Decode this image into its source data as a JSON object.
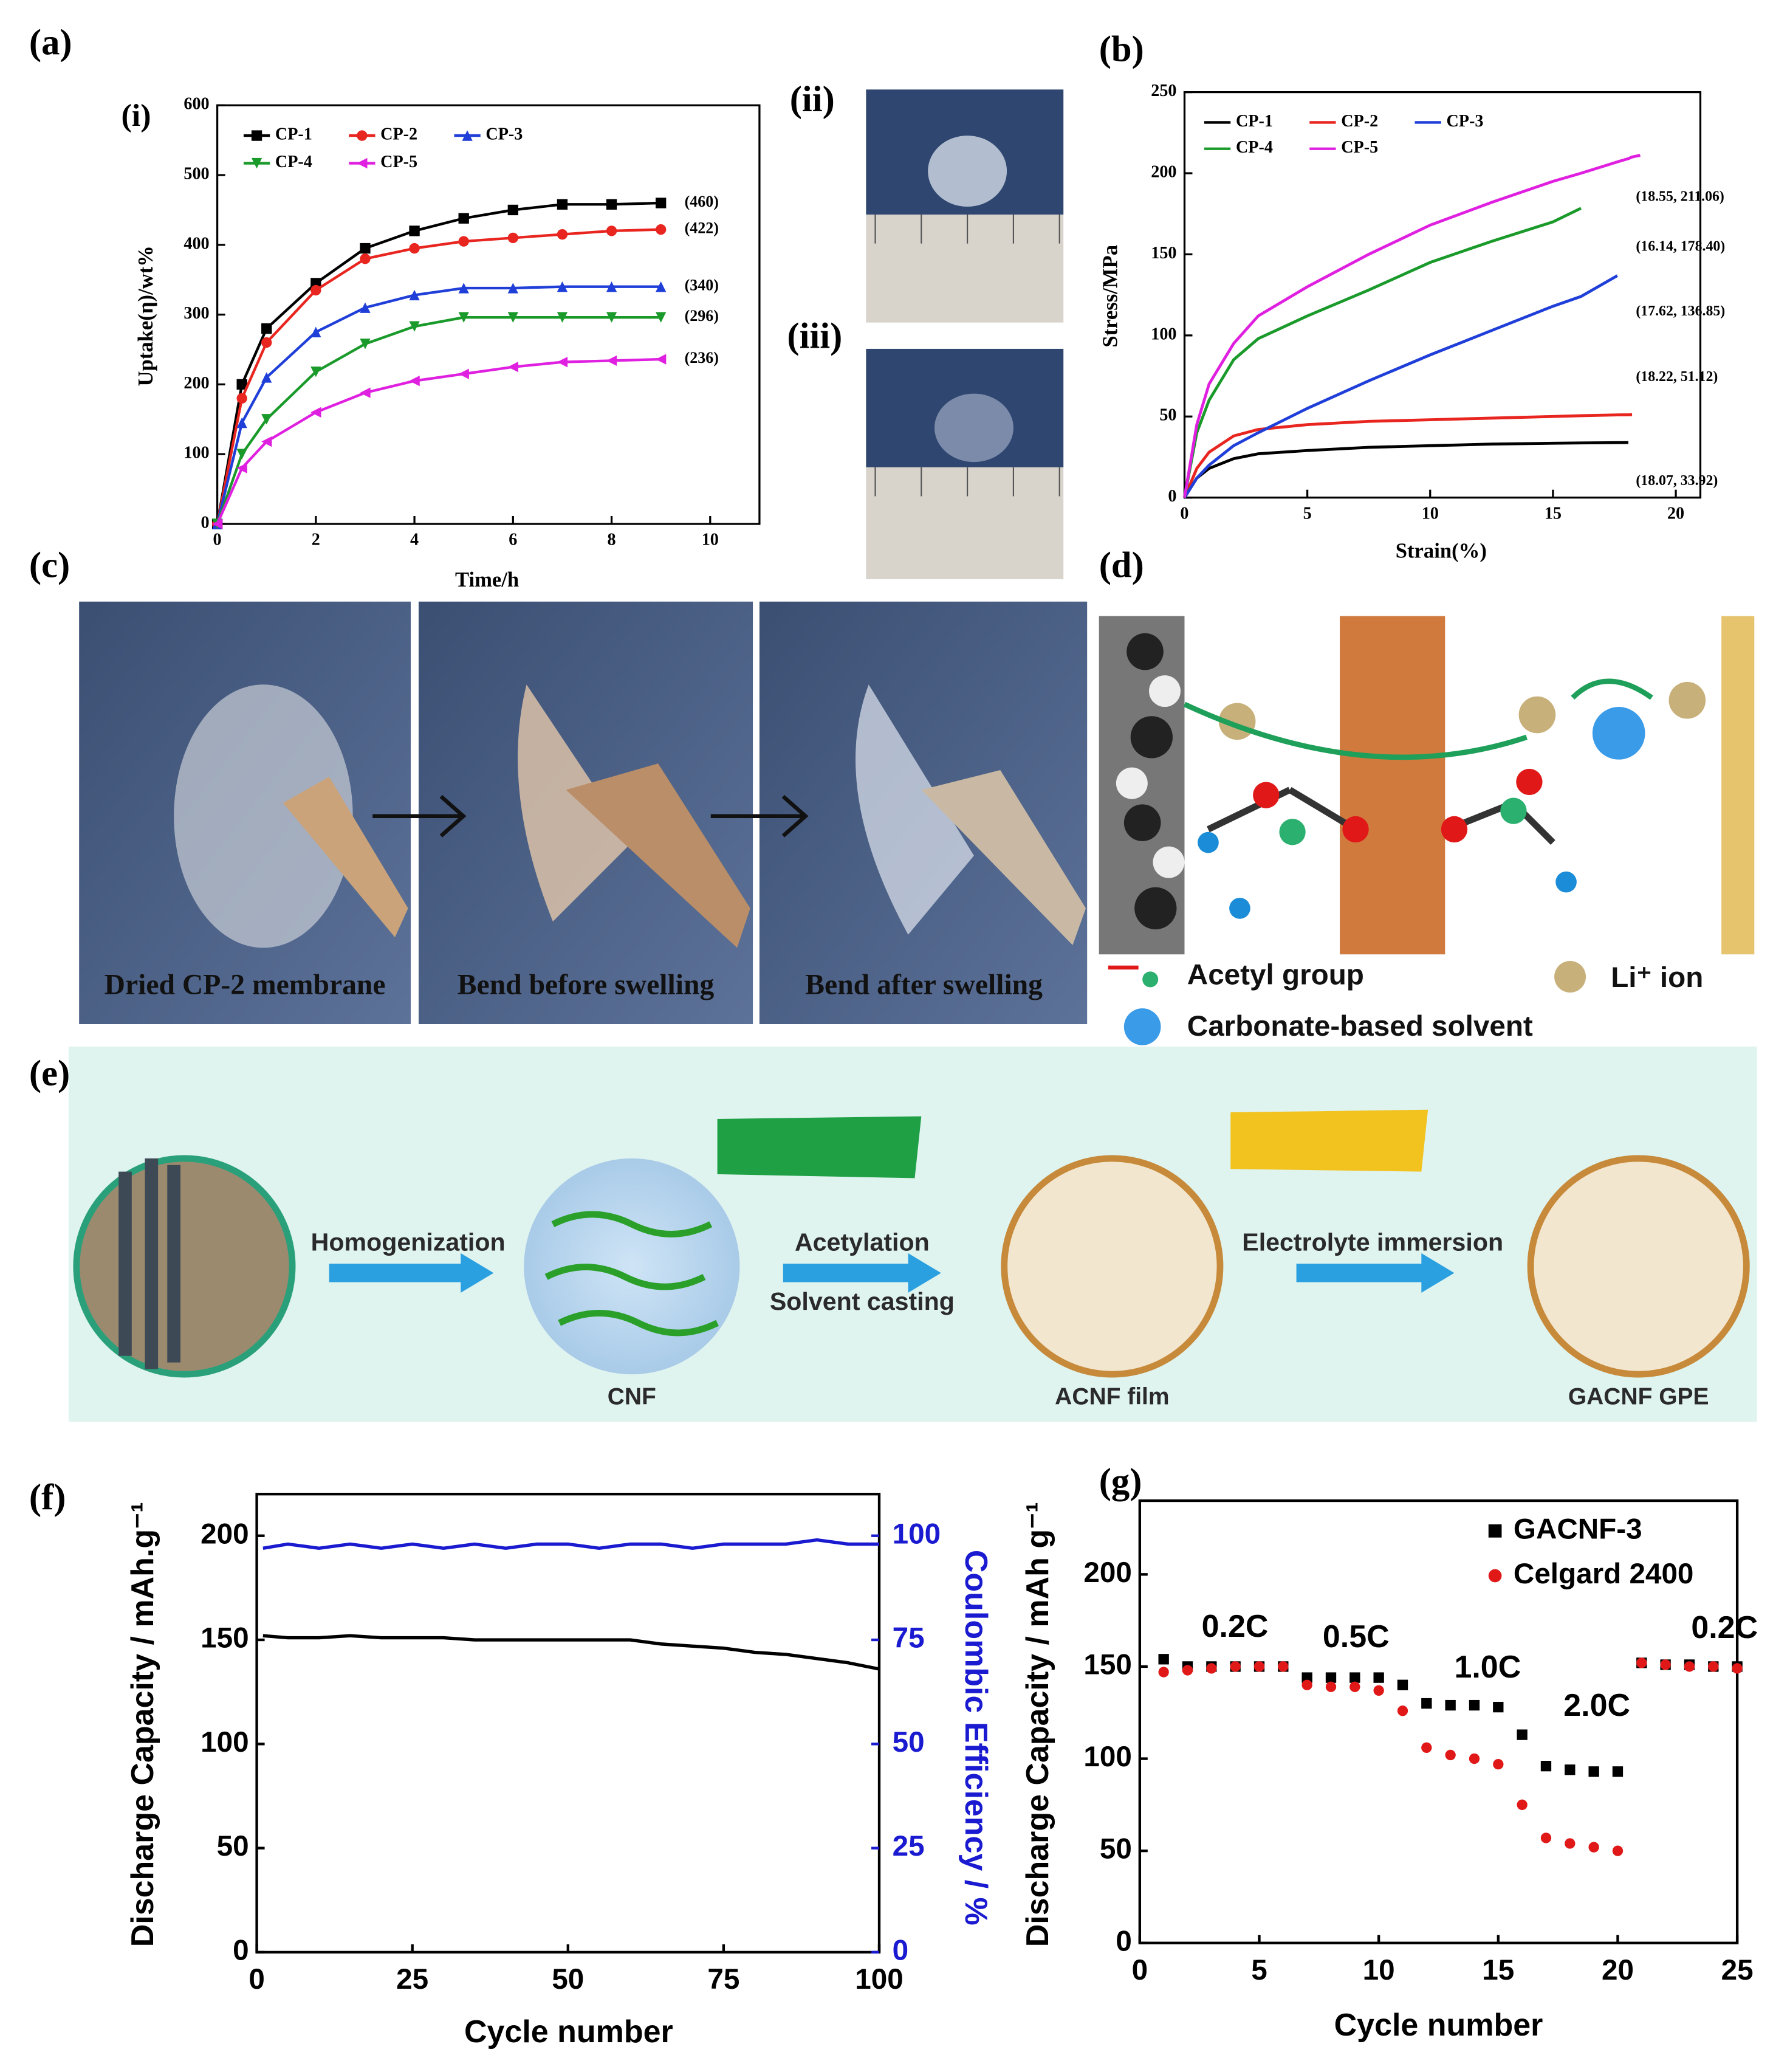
{
  "panel_labels": {
    "a": "(a)",
    "b": "(b)",
    "c": "(c)",
    "d": "(d)",
    "e": "(e)",
    "f": "(f)",
    "g": "(g)",
    "a_i": "(i)",
    "a_ii": "(ii)",
    "a_iii": "(iii)"
  },
  "photos_c": {
    "captions": [
      "Dried  CP-2 membrane",
      "Bend  before swelling",
      "Bend  after swelling"
    ]
  },
  "diagram_d": {
    "legend": [
      "Acetyl group",
      "Li⁺ ion",
      "Carbonate-based solvent"
    ]
  },
  "diagram_e": {
    "steps": [
      "Homogenization",
      "Acetylation",
      "Solvent casting",
      "Electrolyte immersion"
    ],
    "products": [
      "CNF",
      "ACNF film",
      "GACNF GPE"
    ]
  },
  "chart_data": [
    {
      "type": "line",
      "xlabel": "Time/h",
      "ylabel": "Uptake(η)/wt%",
      "xlim": [
        0,
        11
      ],
      "ylim": [
        0,
        600
      ],
      "xticks": [
        0,
        2,
        4,
        6,
        8,
        10
      ],
      "yticks": [
        0,
        100,
        200,
        300,
        400,
        500,
        600
      ],
      "x": [
        0,
        0.5,
        1,
        2,
        3,
        4,
        5,
        6,
        7,
        8,
        9
      ],
      "series": [
        {
          "name": "CP-1",
          "color": "#000000",
          "values": [
            0,
            200,
            280,
            345,
            395,
            420,
            438,
            450,
            458,
            458,
            460
          ]
        },
        {
          "name": "CP-2",
          "color": "#e8251f",
          "values": [
            0,
            180,
            260,
            335,
            380,
            395,
            405,
            410,
            415,
            420,
            422
          ]
        },
        {
          "name": "CP-3",
          "color": "#1f3fd8",
          "values": [
            0,
            145,
            210,
            275,
            310,
            328,
            338,
            338,
            340,
            340,
            340
          ]
        },
        {
          "name": "CP-4",
          "color": "#1a9a2a",
          "values": [
            0,
            100,
            150,
            218,
            258,
            283,
            296,
            296,
            296,
            296,
            296
          ]
        },
        {
          "name": "CP-5",
          "color": "#e020e0",
          "values": [
            0,
            80,
            118,
            160,
            188,
            205,
            215,
            225,
            232,
            234,
            236
          ]
        }
      ],
      "annotations": [
        "(460)",
        "(422)",
        "(340)",
        "(296)",
        "(236)"
      ]
    },
    {
      "type": "line",
      "xlabel": "Strain(%)",
      "ylabel": "Stress/MPa",
      "xlim": [
        0,
        21
      ],
      "ylim": [
        0,
        250
      ],
      "xticks": [
        0,
        5,
        10,
        15,
        20
      ],
      "yticks": [
        0,
        50,
        100,
        150,
        200,
        250
      ],
      "x": [
        0,
        0.5,
        1,
        2,
        3,
        5,
        7.5,
        10,
        12.5,
        15,
        16.14,
        17.62,
        18.07,
        18.22,
        18.55
      ],
      "series": [
        {
          "name": "CP-1",
          "color": "#000000",
          "values": [
            0,
            12,
            18,
            24,
            27,
            29,
            31,
            32,
            33,
            33.5,
            33.7,
            33.9,
            33.92,
            null,
            null
          ]
        },
        {
          "name": "CP-2",
          "color": "#e8251f",
          "values": [
            0,
            18,
            28,
            38,
            42,
            45,
            47,
            48,
            49,
            50,
            50.5,
            51,
            51.05,
            51.12,
            null
          ]
        },
        {
          "name": "CP-3",
          "color": "#1f3fd8",
          "values": [
            0,
            12,
            20,
            32,
            40,
            55,
            72,
            88,
            103,
            118,
            124,
            136.85,
            null,
            null,
            null
          ]
        },
        {
          "name": "CP-4",
          "color": "#1a9a2a",
          "values": [
            0,
            40,
            60,
            85,
            98,
            112,
            128,
            145,
            158,
            170,
            178.4,
            null,
            null,
            null,
            null
          ]
        },
        {
          "name": "CP-5",
          "color": "#e020e0",
          "values": [
            0,
            45,
            70,
            95,
            112,
            130,
            150,
            168,
            182,
            195,
            200,
            207,
            209,
            210,
            211.06
          ]
        }
      ],
      "annotations": [
        "(18.07, 33.92)",
        "(18.22, 51.12)",
        "(17.62, 136.85)",
        "(16.14, 178.40)",
        "(18.55, 211.06)"
      ]
    },
    {
      "type": "line",
      "xlabel": "Cycle number",
      "ylabel": "Discharge Capacity / mAh.g⁻¹",
      "y2label": "Coulombic Efficiency / %",
      "xlim": [
        0,
        100
      ],
      "ylim": [
        0,
        220
      ],
      "y2lim": [
        0,
        110
      ],
      "xticks": [
        0,
        25,
        50,
        75,
        100
      ],
      "yticks": [
        0,
        50,
        100,
        150,
        200
      ],
      "y2ticks": [
        0,
        25,
        50,
        75,
        100
      ],
      "x": [
        1,
        5,
        10,
        15,
        20,
        25,
        30,
        35,
        40,
        45,
        50,
        55,
        60,
        65,
        70,
        75,
        80,
        85,
        90,
        95,
        100
      ],
      "series": [
        {
          "color": "#000000",
          "values": [
            152,
            151,
            151,
            152,
            151,
            151,
            151,
            150,
            150,
            150,
            150,
            150,
            150,
            148,
            147,
            146,
            144,
            143,
            141,
            139,
            136
          ]
        },
        {
          "color": "#1a1ad0",
          "axis": "y2",
          "values": [
            97,
            98,
            97,
            98,
            97,
            98,
            97,
            98,
            97,
            98,
            98,
            97,
            98,
            98,
            97,
            98,
            98,
            98,
            99,
            98,
            98
          ]
        }
      ]
    },
    {
      "type": "scatter",
      "xlabel": "Cycle number",
      "ylabel": "Discharge Capacity / mAh g⁻¹",
      "xlim": [
        0,
        25
      ],
      "ylim": [
        0,
        240
      ],
      "xticks": [
        0,
        5,
        10,
        15,
        20,
        25
      ],
      "yticks": [
        0,
        50,
        100,
        150,
        200
      ],
      "x": [
        1,
        2,
        3,
        4,
        5,
        6,
        7,
        8,
        9,
        10,
        11,
        12,
        13,
        14,
        15,
        16,
        17,
        18,
        19,
        20,
        21,
        22,
        23,
        24,
        25
      ],
      "series": [
        {
          "name": "GACNF-3",
          "color": "#000000",
          "values": [
            154,
            150,
            150,
            150,
            150,
            150,
            144,
            144,
            144,
            144,
            140,
            130,
            129,
            129,
            128,
            113,
            96,
            94,
            93,
            93,
            152,
            151,
            151,
            150,
            150
          ]
        },
        {
          "name": "Celgard 2400",
          "color": "#e01818",
          "values": [
            147,
            148,
            149,
            150,
            150,
            150,
            140,
            139,
            139,
            137,
            126,
            106,
            102,
            100,
            97,
            75,
            57,
            54,
            52,
            50,
            152,
            151,
            150,
            150,
            149
          ]
        }
      ],
      "annotations": [
        "0.2C",
        "0.5C",
        "1.0C",
        "2.0C",
        "0.2C"
      ]
    }
  ]
}
